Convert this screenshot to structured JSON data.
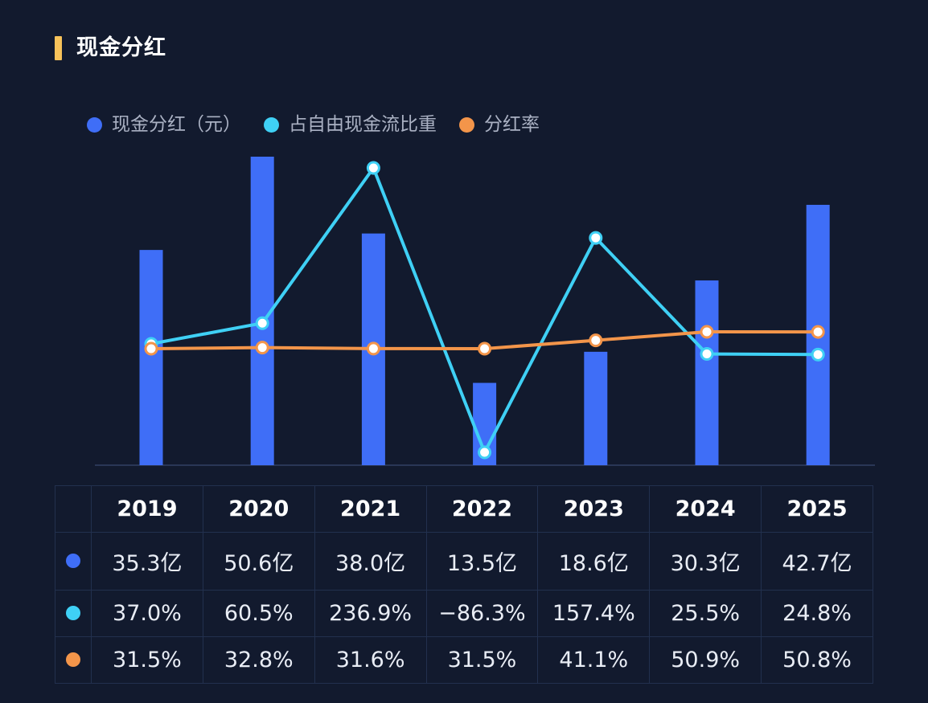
{
  "title": "现金分红",
  "legend": [
    {
      "label": "现金分红（元）",
      "color": "#3f6ef7"
    },
    {
      "label": "占自由现金流比重",
      "color": "#3fd0f5"
    },
    {
      "label": "分红率",
      "color": "#f3954a"
    }
  ],
  "table": {
    "years": [
      "2019",
      "2020",
      "2021",
      "2022",
      "2023",
      "2024",
      "2025"
    ],
    "rows": [
      {
        "color": "#3f6ef7",
        "cells": [
          "35.3亿",
          "50.6亿",
          "38.0亿",
          "13.5亿",
          "18.6亿",
          "30.3亿",
          "42.7亿"
        ]
      },
      {
        "color": "#3fd0f5",
        "cells": [
          "37.0%",
          "60.5%",
          "236.9%",
          "−86.3%",
          "157.4%",
          "25.5%",
          "24.8%"
        ]
      },
      {
        "color": "#f3954a",
        "cells": [
          "31.5%",
          "32.8%",
          "31.6%",
          "31.5%",
          "41.1%",
          "50.9%",
          "50.8%"
        ]
      }
    ]
  },
  "chart_data": {
    "type": "bar",
    "categories": [
      "2019",
      "2020",
      "2021",
      "2022",
      "2023",
      "2024",
      "2025"
    ],
    "series": [
      {
        "name": "现金分红（元）",
        "type": "bar",
        "unit": "亿",
        "values": [
          35.3,
          50.6,
          38.0,
          13.5,
          18.6,
          30.3,
          42.7
        ]
      },
      {
        "name": "占自由现金流比重",
        "type": "line",
        "unit": "%",
        "values": [
          37.0,
          60.5,
          236.9,
          -86.3,
          157.4,
          25.5,
          24.8
        ]
      },
      {
        "name": "分红率",
        "type": "line",
        "unit": "%",
        "values": [
          31.5,
          32.8,
          31.6,
          31.5,
          41.1,
          50.9,
          50.8
        ]
      }
    ],
    "colors": {
      "bar": "#3f6ef7",
      "line_fcf": "#3fd0f5",
      "line_payout": "#f3954a"
    },
    "grid": false,
    "legend_position": "top-left"
  }
}
